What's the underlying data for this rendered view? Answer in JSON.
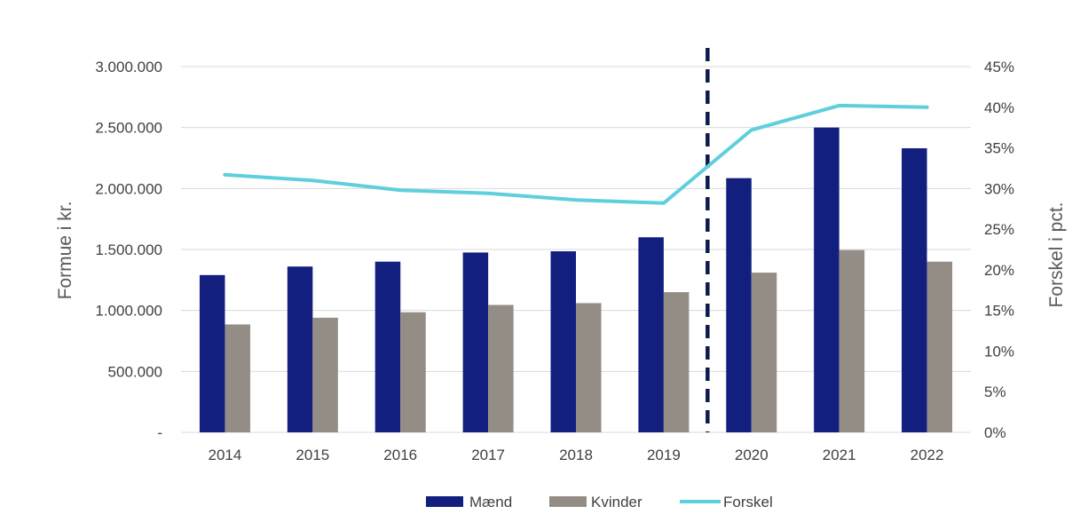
{
  "chart_data": {
    "type": "bar",
    "categories": [
      "2014",
      "2015",
      "2016",
      "2017",
      "2018",
      "2019",
      "2020",
      "2021",
      "2022"
    ],
    "series": [
      {
        "name": "Mænd",
        "type": "bar",
        "axis": "left",
        "values": [
          1290000,
          1360000,
          1400000,
          1475000,
          1485000,
          1600000,
          2085000,
          2500000,
          2330000
        ]
      },
      {
        "name": "Kvinder",
        "type": "bar",
        "axis": "left",
        "values": [
          885000,
          940000,
          985000,
          1045000,
          1060000,
          1150000,
          1310000,
          1495000,
          1400000
        ]
      },
      {
        "name": "Forskel",
        "type": "line",
        "axis": "right",
        "values": [
          31.7,
          31.0,
          29.8,
          29.4,
          28.6,
          28.2,
          37.2,
          40.2,
          40.0
        ]
      }
    ],
    "ylabel": "Formue i kr.",
    "y2label": "Forskel i pct.",
    "ylim": [
      0,
      3000000
    ],
    "y2lim": [
      0,
      45
    ],
    "yticks": [
      0,
      500000,
      1000000,
      1500000,
      2000000,
      2500000,
      3000000
    ],
    "yticklabels": [
      "-",
      "500.000",
      "1.000.000",
      "1.500.000",
      "2.000.000",
      "2.500.000",
      "3.000.000"
    ],
    "y2ticks": [
      0,
      5,
      10,
      15,
      20,
      25,
      30,
      35,
      40,
      45
    ],
    "y2ticklabels": [
      "0%",
      "5%",
      "10%",
      "15%",
      "20%",
      "25%",
      "30%",
      "35%",
      "40%",
      "45%"
    ],
    "grid": true,
    "legend_position": "bottom",
    "annotation": "dashed vertical line between 2019 and 2020",
    "colors": {
      "maend": "#121f7f",
      "kvinder": "#948d86",
      "forskel": "#5ecfdc",
      "divider": "#0d1a4d",
      "grid": "#d9d9d9"
    }
  }
}
